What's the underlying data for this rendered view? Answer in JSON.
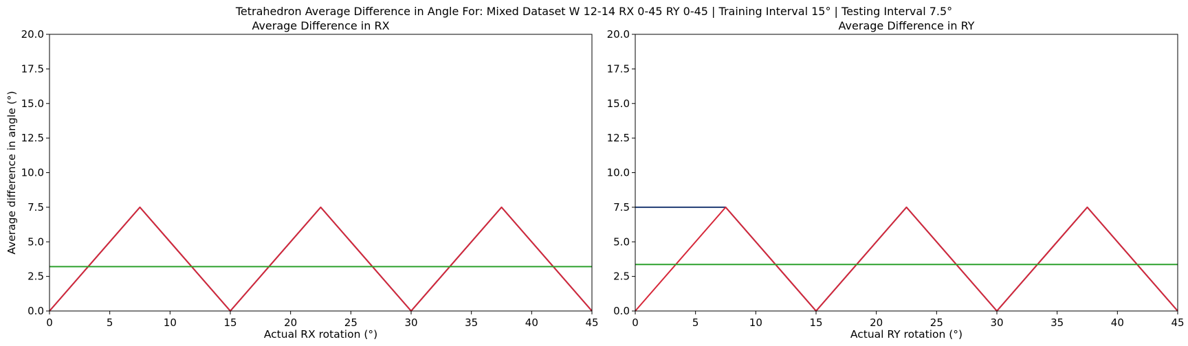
{
  "figure": {
    "suptitle": "Tetrahedron Average Difference in Angle For: Mixed Dataset W 12-14 RX 0-45 RY 0-45 | Training Interval 15° | Testing Interval 7.5°"
  },
  "chart_data": [
    {
      "type": "line",
      "title": "Average Difference in RX",
      "xlabel": "Actual RX rotation (°)",
      "ylabel": "Average difference in angle (°)",
      "xlim": [
        0,
        45
      ],
      "ylim": [
        0,
        20
      ],
      "xticks": [
        0,
        5,
        10,
        15,
        20,
        25,
        30,
        35,
        40,
        45
      ],
      "yticks": [
        0.0,
        2.5,
        5.0,
        7.5,
        10.0,
        12.5,
        15.0,
        17.5,
        20.0
      ],
      "grid": false,
      "series": [
        {
          "color": "#1f3b73",
          "x": [
            0,
            7.5,
            15,
            22.5,
            30,
            37.5,
            45
          ],
          "y": [
            0,
            7.5,
            0,
            7.5,
            0,
            7.5,
            0
          ]
        },
        {
          "color": "#d62739",
          "x": [
            0,
            7.5,
            15,
            22.5,
            30,
            37.5,
            45
          ],
          "y": [
            0,
            7.5,
            0,
            7.5,
            0,
            7.5,
            0
          ]
        },
        {
          "color": "#2ca02c",
          "x": [
            0,
            45
          ],
          "y": [
            3.21,
            3.21
          ]
        }
      ]
    },
    {
      "type": "line",
      "title": "Average Difference in RY",
      "xlabel": "Actual RY rotation (°)",
      "ylabel": "",
      "xlim": [
        0,
        45
      ],
      "ylim": [
        0,
        20
      ],
      "xticks": [
        0,
        5,
        10,
        15,
        20,
        25,
        30,
        35,
        40,
        45
      ],
      "yticks": [
        0.0,
        2.5,
        5.0,
        7.5,
        10.0,
        12.5,
        15.0,
        17.5,
        20.0
      ],
      "grid": false,
      "series": [
        {
          "color": "#1f3b73",
          "x": [
            0,
            7.5,
            15,
            22.5,
            30,
            37.5,
            45
          ],
          "y": [
            7.5,
            7.5,
            0,
            7.5,
            0,
            7.5,
            0
          ]
        },
        {
          "color": "#d62739",
          "x": [
            0,
            7.5,
            15,
            22.5,
            30,
            37.5,
            45
          ],
          "y": [
            0,
            7.5,
            0,
            7.5,
            0,
            7.5,
            0
          ]
        },
        {
          "color": "#2ca02c",
          "x": [
            0,
            45
          ],
          "y": [
            3.36,
            3.36
          ]
        }
      ]
    }
  ]
}
